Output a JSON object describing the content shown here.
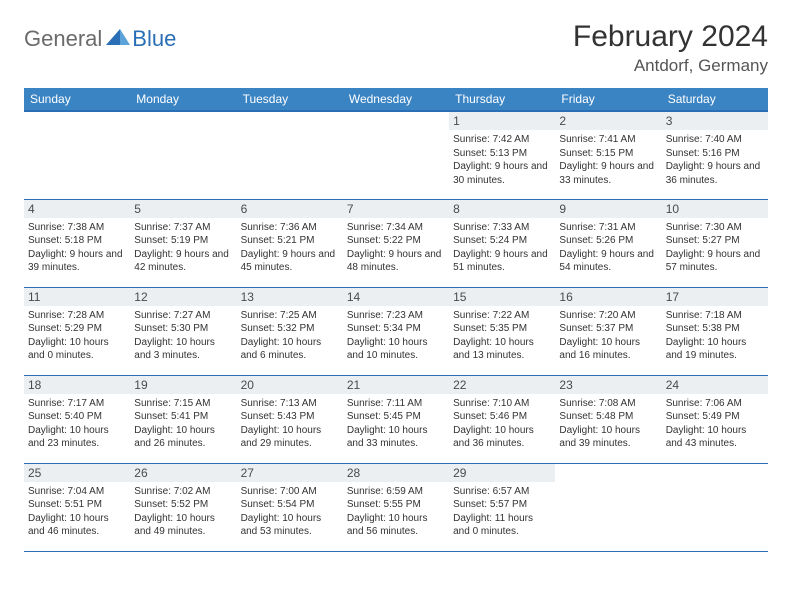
{
  "logo": {
    "text1": "General",
    "text2": "Blue"
  },
  "title": "February 2024",
  "location": "Antdorf, Germany",
  "colors": {
    "header_bg": "#3b84c4",
    "header_border": "#2a6fb5",
    "daynum_bg": "#eceff1",
    "text": "#333333",
    "logo_gray": "#6b6b6b",
    "logo_blue": "#2a6fb5"
  },
  "weekdays": [
    "Sunday",
    "Monday",
    "Tuesday",
    "Wednesday",
    "Thursday",
    "Friday",
    "Saturday"
  ],
  "weeks": [
    [
      null,
      null,
      null,
      null,
      {
        "n": "1",
        "sr": "7:42 AM",
        "ss": "5:13 PM",
        "dl": "9 hours and 30 minutes."
      },
      {
        "n": "2",
        "sr": "7:41 AM",
        "ss": "5:15 PM",
        "dl": "9 hours and 33 minutes."
      },
      {
        "n": "3",
        "sr": "7:40 AM",
        "ss": "5:16 PM",
        "dl": "9 hours and 36 minutes."
      }
    ],
    [
      {
        "n": "4",
        "sr": "7:38 AM",
        "ss": "5:18 PM",
        "dl": "9 hours and 39 minutes."
      },
      {
        "n": "5",
        "sr": "7:37 AM",
        "ss": "5:19 PM",
        "dl": "9 hours and 42 minutes."
      },
      {
        "n": "6",
        "sr": "7:36 AM",
        "ss": "5:21 PM",
        "dl": "9 hours and 45 minutes."
      },
      {
        "n": "7",
        "sr": "7:34 AM",
        "ss": "5:22 PM",
        "dl": "9 hours and 48 minutes."
      },
      {
        "n": "8",
        "sr": "7:33 AM",
        "ss": "5:24 PM",
        "dl": "9 hours and 51 minutes."
      },
      {
        "n": "9",
        "sr": "7:31 AM",
        "ss": "5:26 PM",
        "dl": "9 hours and 54 minutes."
      },
      {
        "n": "10",
        "sr": "7:30 AM",
        "ss": "5:27 PM",
        "dl": "9 hours and 57 minutes."
      }
    ],
    [
      {
        "n": "11",
        "sr": "7:28 AM",
        "ss": "5:29 PM",
        "dl": "10 hours and 0 minutes."
      },
      {
        "n": "12",
        "sr": "7:27 AM",
        "ss": "5:30 PM",
        "dl": "10 hours and 3 minutes."
      },
      {
        "n": "13",
        "sr": "7:25 AM",
        "ss": "5:32 PM",
        "dl": "10 hours and 6 minutes."
      },
      {
        "n": "14",
        "sr": "7:23 AM",
        "ss": "5:34 PM",
        "dl": "10 hours and 10 minutes."
      },
      {
        "n": "15",
        "sr": "7:22 AM",
        "ss": "5:35 PM",
        "dl": "10 hours and 13 minutes."
      },
      {
        "n": "16",
        "sr": "7:20 AM",
        "ss": "5:37 PM",
        "dl": "10 hours and 16 minutes."
      },
      {
        "n": "17",
        "sr": "7:18 AM",
        "ss": "5:38 PM",
        "dl": "10 hours and 19 minutes."
      }
    ],
    [
      {
        "n": "18",
        "sr": "7:17 AM",
        "ss": "5:40 PM",
        "dl": "10 hours and 23 minutes."
      },
      {
        "n": "19",
        "sr": "7:15 AM",
        "ss": "5:41 PM",
        "dl": "10 hours and 26 minutes."
      },
      {
        "n": "20",
        "sr": "7:13 AM",
        "ss": "5:43 PM",
        "dl": "10 hours and 29 minutes."
      },
      {
        "n": "21",
        "sr": "7:11 AM",
        "ss": "5:45 PM",
        "dl": "10 hours and 33 minutes."
      },
      {
        "n": "22",
        "sr": "7:10 AM",
        "ss": "5:46 PM",
        "dl": "10 hours and 36 minutes."
      },
      {
        "n": "23",
        "sr": "7:08 AM",
        "ss": "5:48 PM",
        "dl": "10 hours and 39 minutes."
      },
      {
        "n": "24",
        "sr": "7:06 AM",
        "ss": "5:49 PM",
        "dl": "10 hours and 43 minutes."
      }
    ],
    [
      {
        "n": "25",
        "sr": "7:04 AM",
        "ss": "5:51 PM",
        "dl": "10 hours and 46 minutes."
      },
      {
        "n": "26",
        "sr": "7:02 AM",
        "ss": "5:52 PM",
        "dl": "10 hours and 49 minutes."
      },
      {
        "n": "27",
        "sr": "7:00 AM",
        "ss": "5:54 PM",
        "dl": "10 hours and 53 minutes."
      },
      {
        "n": "28",
        "sr": "6:59 AM",
        "ss": "5:55 PM",
        "dl": "10 hours and 56 minutes."
      },
      {
        "n": "29",
        "sr": "6:57 AM",
        "ss": "5:57 PM",
        "dl": "11 hours and 0 minutes."
      },
      null,
      null
    ]
  ],
  "labels": {
    "sunrise": "Sunrise: ",
    "sunset": "Sunset: ",
    "daylight": "Daylight: "
  }
}
